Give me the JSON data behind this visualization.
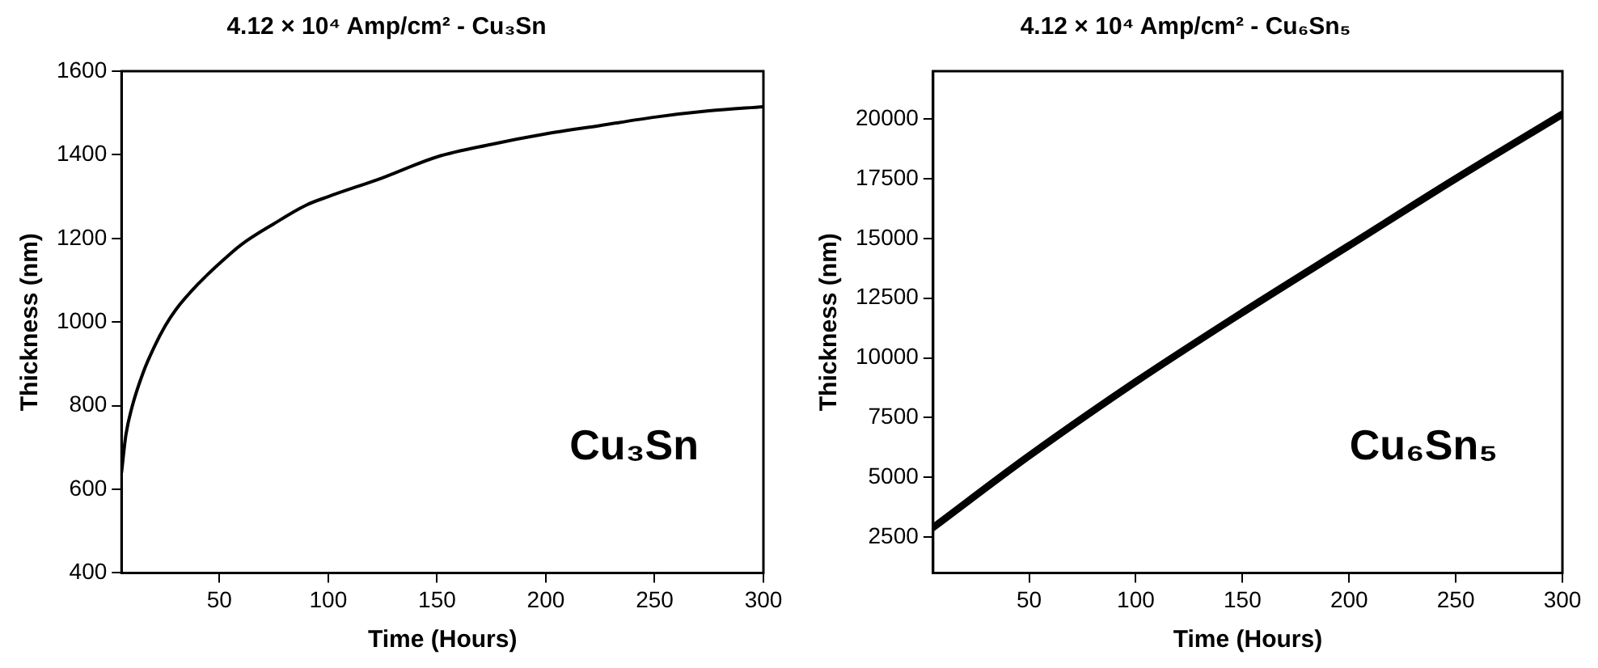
{
  "chart_data": [
    {
      "type": "line",
      "title": "4.12 × 10⁴ Amp/cm² - Cu₃Sn",
      "xlabel": "Time (Hours)",
      "ylabel": "Thickness (nm)",
      "x": [
        5,
        7,
        10,
        15,
        20,
        25,
        30,
        40,
        50,
        60,
        75,
        90,
        100,
        125,
        150,
        175,
        200,
        225,
        250,
        275,
        300
      ],
      "series": [
        {
          "color": "#000000",
          "values": [
            640,
            730,
            800,
            880,
            940,
            990,
            1030,
            1090,
            1140,
            1185,
            1235,
            1280,
            1300,
            1345,
            1395,
            1425,
            1450,
            1470,
            1490,
            1505,
            1515
          ]
        }
      ],
      "xlim": [
        5,
        300
      ],
      "xticks": [
        50,
        100,
        150,
        200,
        250,
        300
      ],
      "ylim": [
        400,
        1600
      ],
      "yticks": [
        400,
        600,
        800,
        1000,
        1200,
        1400,
        1600
      ],
      "grid": false,
      "legend": false,
      "marker": "none",
      "line_style": "solid",
      "annotations": [
        "Cu₃Sn"
      ]
    },
    {
      "type": "line",
      "title": "4.12 × 10⁴ Amp/cm² - Cu₆Sn₅",
      "xlabel": "Time (Hours)",
      "ylabel": "Thickness (nm)",
      "x": [
        5,
        50,
        100,
        150,
        200,
        250,
        300
      ],
      "series": [
        {
          "color": "#000000",
          "values": [
            2900,
            5900,
            9000,
            11900,
            14700,
            17500,
            20200
          ]
        }
      ],
      "xlim": [
        5,
        300
      ],
      "xticks": [
        50,
        100,
        150,
        200,
        250,
        300
      ],
      "ylim": [
        1000,
        22000
      ],
      "yticks": [
        2500,
        5000,
        7500,
        10000,
        12500,
        15000,
        17500,
        20000
      ],
      "grid": false,
      "legend": false,
      "marker": "none",
      "line_style": "solid",
      "annotations": [
        "Cu₆Sn₅"
      ]
    }
  ]
}
